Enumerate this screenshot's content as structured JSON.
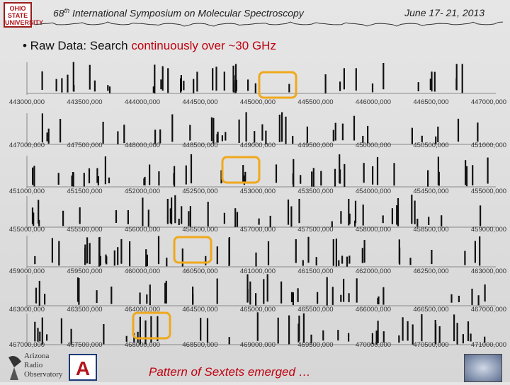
{
  "header": {
    "logo_text": "OHIO STATE UNIVERSITY",
    "title_num": "68",
    "title_sup": "th",
    "title_rest": " International Symposium on Molecular Spectroscopy",
    "date": "June 17- 21, 2013"
  },
  "bullet": {
    "prefix": "• Raw Data: Search ",
    "highlight": "continuously over ~30 GHz"
  },
  "rows": [
    {
      "ticks": [
        "443000,000",
        "443500,000",
        "444000,000",
        "444500,000",
        "445000,000",
        "445500,000",
        "446000,000",
        "446500,000",
        "447000,000"
      ]
    },
    {
      "ticks": [
        "447000,000",
        "447500,000",
        "448000,000",
        "448500,000",
        "449000,000",
        "449500,000",
        "450000,000",
        "450500,000",
        "451000,000"
      ]
    },
    {
      "ticks": [
        "451000,000",
        "451500,000",
        "452000,000",
        "452500,000",
        "453000,000",
        "453500,000",
        "454000,000",
        "454500,000",
        "455000,000"
      ]
    },
    {
      "ticks": [
        "455000,000",
        "455500,000",
        "456000,000",
        "456500,000",
        "457000,000",
        "457500,000",
        "458000,000",
        "458500,000",
        "459000,000"
      ]
    },
    {
      "ticks": [
        "459000,000",
        "459500,000",
        "460000,000",
        "460500,000",
        "461000,000",
        "461500,000",
        "462000,000",
        "462500,000",
        "463000,000"
      ]
    },
    {
      "ticks": [
        "463000,000",
        "463500,000",
        "464000,000",
        "464500,000",
        "465000,000",
        "465500,000",
        "466000,000",
        "466500,000",
        "467000,000"
      ]
    },
    {
      "ticks": [
        "467000,000",
        "467500,000",
        "468000,000",
        "468500,000",
        "469000,000",
        "469500,000",
        "470000,000",
        "470500,000",
        "471000,000"
      ]
    }
  ],
  "highlight_color": "#f0a81c",
  "footer": {
    "aro_line1": "Arizona",
    "aro_line2": "Radio",
    "aro_line3": "Observatory",
    "ua_letter": "A",
    "caption": "Pattern of Sextets emerged …"
  }
}
